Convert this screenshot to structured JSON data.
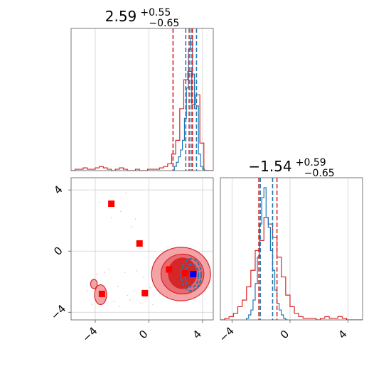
{
  "chart_data": [
    {
      "type": "histogram",
      "panel": "top-left",
      "title_main": "2.59",
      "title_sup": "+0.55",
      "title_sub": "−0.65",
      "xlim": [
        -5.8,
        4.8
      ],
      "grid": true,
      "x_ticks": [
        -4,
        0,
        4
      ],
      "series": [
        {
          "color": "#d62728",
          "bins": [
            -5.8,
            -5.5,
            -5.2,
            -4.9,
            -4.6,
            -4.3,
            -4.0,
            -3.7,
            -3.4,
            -3.1,
            -2.8,
            -2.5,
            -2.2,
            -1.9,
            -1.6,
            -1.3,
            -1.0,
            -0.7,
            -0.4,
            -0.1,
            0.2,
            0.5,
            0.8,
            1.1,
            1.4,
            1.7,
            2.0,
            2.3,
            2.6,
            2.9,
            3.2,
            3.5,
            3.8,
            4.1,
            4.4,
            4.8
          ],
          "values": [
            0,
            0.01,
            0.01,
            0.02,
            0.01,
            0.01,
            0.02,
            0.03,
            0.02,
            0.01,
            0,
            0.01,
            0.02,
            0.01,
            0,
            0,
            0.01,
            0,
            0,
            0.01,
            0.01,
            0.01,
            0.02,
            0.03,
            0.05,
            0.12,
            0.22,
            0.45,
            0.66,
            0.72,
            0.48,
            0.55,
            0.2,
            0,
            0
          ]
        },
        {
          "color": "#1f77b4",
          "bins": [
            1.9,
            2.05,
            2.2,
            2.35,
            2.5,
            2.65,
            2.8,
            2.95,
            3.1,
            3.25,
            3.4,
            3.55,
            3.7,
            3.85,
            4.0,
            4.15,
            4.3
          ],
          "values": [
            0.03,
            0.06,
            0.1,
            0.15,
            0.22,
            0.38,
            0.6,
            0.88,
            0.96,
            0.7,
            0.45,
            0.47,
            0.12,
            0.03,
            0.01,
            0
          ]
        }
      ],
      "quantile_lines": [
        {
          "color": "#d62728",
          "x": 1.8
        },
        {
          "color": "#d62728",
          "x": 3.0
        },
        {
          "color": "#d62728",
          "x": 3.25
        },
        {
          "color": "#1f77b4",
          "x": 2.75
        },
        {
          "color": "#1f77b4",
          "x": 3.15
        },
        {
          "color": "#1f77b4",
          "x": 3.55
        }
      ]
    },
    {
      "type": "scatter",
      "panel": "bottom-left",
      "xlim": [
        -5.8,
        4.8
      ],
      "ylim": [
        -4.5,
        4.8
      ],
      "grid": true,
      "x_ticks": [
        -4,
        0,
        4
      ],
      "y_ticks": [
        4,
        0,
        -4
      ],
      "markers": [
        {
          "x": -2.8,
          "y": 3.1,
          "color": "#ff0000"
        },
        {
          "x": -0.7,
          "y": 0.5,
          "color": "#ff0000"
        },
        {
          "x": -3.5,
          "y": -2.8,
          "color": "#ff0000"
        },
        {
          "x": -0.3,
          "y": -2.75,
          "color": "#ff0000"
        },
        {
          "x": 1.5,
          "y": -1.2,
          "color": "#ff0000"
        },
        {
          "x": 2.7,
          "y": -1.45,
          "color": "#ff0000"
        },
        {
          "x": 3.3,
          "y": -1.5,
          "color": "#0000ff"
        }
      ],
      "contours": [
        {
          "color": "#d62728",
          "fill": "#f4a3a6",
          "cx": 2.4,
          "cy": -1.5,
          "rx": 2.2,
          "ry": 1.75
        },
        {
          "color": "#d62728",
          "fill": "#e86a6e",
          "cx": 2.5,
          "cy": -1.5,
          "rx": 1.6,
          "ry": 1.3
        },
        {
          "color": "#d62728",
          "fill": "#d62728",
          "cx": 2.5,
          "cy": -1.45,
          "rx": 1.05,
          "ry": 1.0
        },
        {
          "color": "#d62728",
          "fill": "#f4a3a6",
          "cx": -3.6,
          "cy": -2.85,
          "rx": 0.45,
          "ry": 0.65
        },
        {
          "color": "#d62728",
          "fill": "#f4a3a6",
          "cx": -4.1,
          "cy": -2.15,
          "rx": 0.25,
          "ry": 0.3
        },
        {
          "color": "#1f77b4",
          "fill": "none",
          "cx": 3.15,
          "cy": -1.55,
          "rx": 0.75,
          "ry": 1.05
        },
        {
          "color": "#1f77b4",
          "fill": "none",
          "cx": 3.2,
          "cy": -1.6,
          "rx": 0.5,
          "ry": 0.75
        }
      ],
      "scatter_points": [
        [
          -4.6,
          -2.6
        ],
        [
          -4.2,
          -3.5
        ],
        [
          -3.9,
          -1.5
        ],
        [
          -3.0,
          -1.2
        ],
        [
          -2.6,
          -3.3
        ],
        [
          -2.3,
          -2.3
        ],
        [
          -1.8,
          -1.4
        ],
        [
          -1.4,
          -3.2
        ],
        [
          -1.1,
          -2.6
        ],
        [
          -0.6,
          -3.4
        ],
        [
          -0.2,
          -3.1
        ],
        [
          0.1,
          -2.4
        ],
        [
          -0.9,
          -1.3
        ],
        [
          -2.1,
          2.6
        ],
        [
          -2.8,
          2.2
        ],
        [
          -1.7,
          3.8
        ],
        [
          -1.3,
          1.6
        ],
        [
          -1.6,
          -2.9
        ],
        [
          -3.3,
          -1.4
        ],
        [
          -2.2,
          -3.6
        ],
        [
          0.3,
          -3.5
        ],
        [
          -1.0,
          2.1
        ],
        [
          -3.7,
          3.2
        ],
        [
          -0.4,
          -1.7
        ]
      ]
    },
    {
      "type": "histogram",
      "panel": "bottom-right",
      "title_main": "−1.54",
      "title_sup": "+0.59",
      "title_sub": "−0.65",
      "xlim": [
        -4.8,
        5.0
      ],
      "grid": true,
      "x_ticks": [
        -4,
        0,
        4
      ],
      "series": [
        {
          "color": "#d62728",
          "bins": [
            -4.8,
            -4.5,
            -4.2,
            -3.9,
            -3.6,
            -3.3,
            -3.0,
            -2.7,
            -2.4,
            -2.1,
            -1.8,
            -1.5,
            -1.2,
            -0.9,
            -0.6,
            -0.3,
            0.0,
            0.3,
            0.6,
            0.9,
            1.2,
            1.5,
            1.8,
            2.1,
            2.4,
            2.7,
            3.0,
            3.3,
            3.6,
            3.9,
            4.2,
            4.5,
            5.0
          ],
          "values": [
            0.0,
            0.01,
            0.02,
            0.04,
            0.08,
            0.12,
            0.2,
            0.3,
            0.42,
            0.48,
            0.62,
            0.58,
            0.5,
            0.38,
            0.26,
            0.15,
            0.08,
            0.04,
            0.02,
            0.01,
            0.01,
            0.01,
            0.0,
            0.01,
            0.02,
            0.01,
            0.01,
            0.02,
            0.01,
            0.0,
            0.0,
            0.0
          ]
        },
        {
          "color": "#1f77b4",
          "bins": [
            -3.0,
            -2.85,
            -2.7,
            -2.55,
            -2.4,
            -2.25,
            -2.1,
            -1.95,
            -1.8,
            -1.65,
            -1.5,
            -1.35,
            -1.2,
            -1.05,
            -0.9,
            -0.75,
            -0.6,
            -0.45,
            -0.3,
            -0.15
          ],
          "values": [
            0.01,
            0.03,
            0.06,
            0.12,
            0.22,
            0.38,
            0.58,
            0.74,
            0.8,
            0.62,
            0.56,
            0.42,
            0.3,
            0.18,
            0.1,
            0.06,
            0.03,
            0.01,
            0.0
          ]
        }
      ],
      "quantile_lines": [
        {
          "color": "#d62728",
          "x": -2.15
        },
        {
          "color": "#d62728",
          "x": -0.9
        },
        {
          "color": "#1f77b4",
          "x": -2.05
        },
        {
          "color": "#1f77b4",
          "x": -1.2
        }
      ]
    }
  ]
}
